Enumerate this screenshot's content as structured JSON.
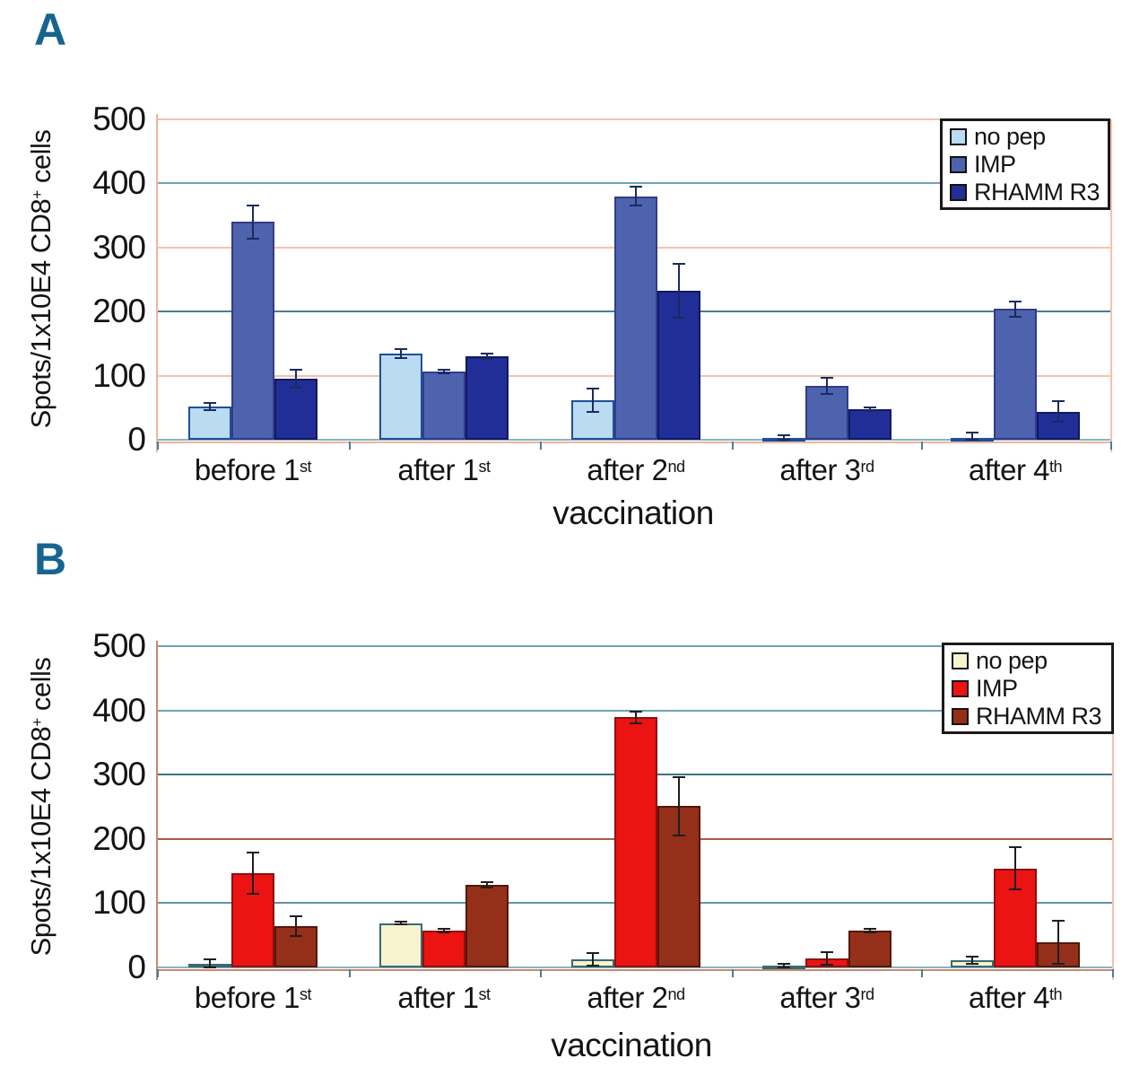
{
  "figure": {
    "background": "#ffffff",
    "text_color": "#141414",
    "panel_letter_color": "#16648f",
    "right_boundary_color": "#f5c2ac"
  },
  "chart_data": [
    {
      "panel": "A",
      "type": "bar",
      "ylabel": "Spots/1x10E4 CD8+ cells",
      "ylabel_parts": {
        "prefix": "Spots/1x10E4 CD8",
        "sup": "+",
        "suffix": " cells"
      },
      "xlabel": "vaccination",
      "ylim": [
        0,
        500
      ],
      "yticks": [
        "0",
        "100",
        "200",
        "300",
        "400",
        "500"
      ],
      "grid": true,
      "legend_position": "top-right",
      "categories": [
        "before 1st",
        "after 1st",
        "after 2nd",
        "after 3rd",
        "after 4th"
      ],
      "category_parts": [
        {
          "base": "before 1",
          "sup": "st"
        },
        {
          "base": "after 1",
          "sup": "st"
        },
        {
          "base": "after 2",
          "sup": "nd"
        },
        {
          "base": "after 3",
          "sup": "rd"
        },
        {
          "base": "after 4",
          "sup": "th"
        }
      ],
      "series": [
        {
          "name": "no pep",
          "color": "#badbf2",
          "edge": "#1f4f9a",
          "values": [
            52,
            134,
            62,
            3,
            3
          ],
          "errors": [
            6,
            7,
            18,
            4,
            8
          ]
        },
        {
          "name": "IMP",
          "color": "#4d63ae",
          "edge": "#333a8c",
          "values": [
            340,
            106,
            380,
            84,
            204
          ],
          "errors": [
            26,
            3,
            15,
            12,
            12
          ]
        },
        {
          "name": "RHAMM R3",
          "color": "#222e98",
          "edge": "#101a60",
          "values": [
            95,
            130,
            233,
            48,
            44
          ],
          "errors": [
            14,
            4,
            42,
            3,
            16
          ]
        }
      ],
      "grid_colors": {
        "0": "#85b4cb",
        "100": "#f5c2ac",
        "200": "#4a7d94",
        "300": "#f5c2ac",
        "400": "#6fa3b5",
        "500": "#f5c2ac"
      },
      "axis_color": "#f2b49c",
      "error_color": "#1b2b5e"
    },
    {
      "panel": "B",
      "type": "bar",
      "ylabel": "Spots/1x10E4 CD8+ cells",
      "ylabel_parts": {
        "prefix": "Spots/1x10E4 CD8",
        "sup": "+",
        "suffix": " cells"
      },
      "xlabel": "vaccination",
      "ylim": [
        0,
        500
      ],
      "yticks": [
        "0",
        "100",
        "200",
        "300",
        "400",
        "500"
      ],
      "grid": true,
      "legend_position": "top-right",
      "categories": [
        "before 1st",
        "after 1st",
        "after 2nd",
        "after 3rd",
        "after 4th"
      ],
      "category_parts": [
        {
          "base": "before 1",
          "sup": "st"
        },
        {
          "base": "after 1",
          "sup": "st"
        },
        {
          "base": "after 2",
          "sup": "nd"
        },
        {
          "base": "after 3",
          "sup": "rd"
        },
        {
          "base": "after 4",
          "sup": "th"
        }
      ],
      "series": [
        {
          "name": "no pep",
          "color": "#f7f3cf",
          "edge": "#3a6a70",
          "values": [
            5,
            69,
            13,
            3,
            11
          ],
          "errors": [
            7,
            2,
            10,
            3,
            6
          ]
        },
        {
          "name": "IMP",
          "color": "#ec1313",
          "edge": "#8f0f0f",
          "values": [
            147,
            57,
            389,
            14,
            154
          ],
          "errors": [
            32,
            3,
            9,
            10,
            33
          ]
        },
        {
          "name": "RHAMM R3",
          "color": "#943019",
          "edge": "#531708",
          "values": [
            64,
            129,
            251,
            57,
            39
          ],
          "errors": [
            15,
            4,
            45,
            3,
            33
          ]
        }
      ],
      "grid_colors": {
        "0": "#85b4cb",
        "100": "#5f93a8",
        "200": "#a85c44",
        "300": "#3f7388",
        "400": "#6fa3b5",
        "500": "#6fa3b5"
      },
      "axis_color": "#c98a6b",
      "error_color": "#1e1e1e"
    }
  ]
}
